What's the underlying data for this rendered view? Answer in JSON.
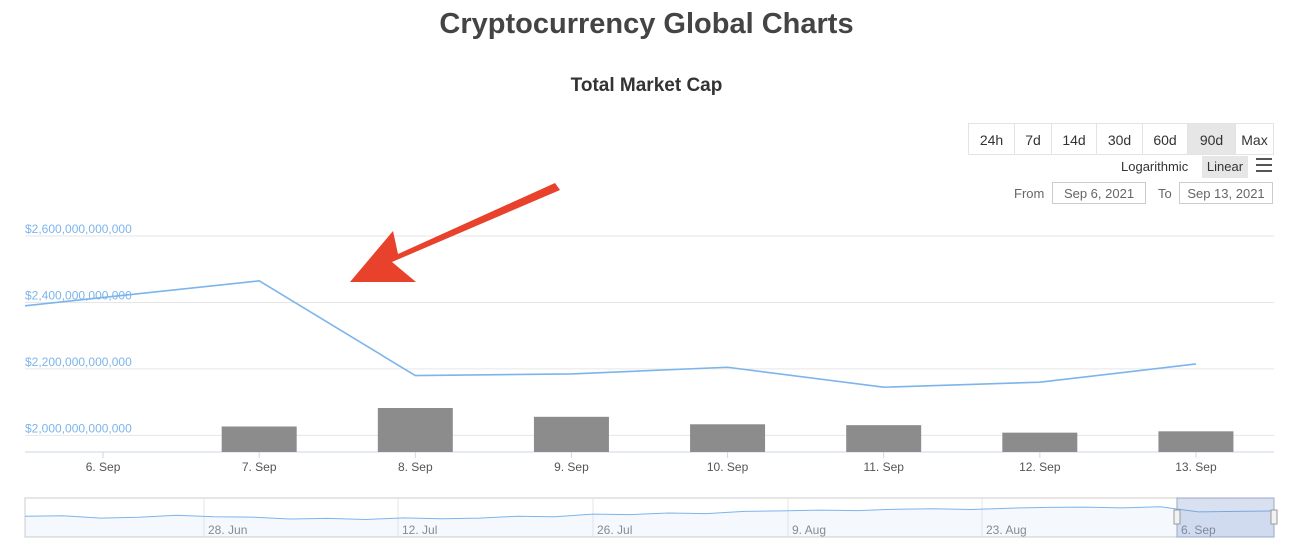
{
  "page": {
    "title": "Cryptocurrency Global Charts"
  },
  "chart_data": {
    "type": "line",
    "title": "Total Market Cap",
    "xlabel": "",
    "ylabel": "",
    "categories": [
      "6. Sep",
      "7. Sep",
      "8. Sep",
      "9. Sep",
      "10. Sep",
      "11. Sep",
      "12. Sep",
      "13. Sep"
    ],
    "series": [
      {
        "values": [
          2390000000000,
          2465000000000,
          2180000000000,
          2185000000000,
          2205000000000,
          2145000000000,
          2160000000000,
          2215000000000
        ]
      },
      {
        "type": "bar",
        "values": [
          null,
          0.58,
          1.0,
          0.8,
          0.63,
          0.61,
          0.44,
          0.47
        ]
      }
    ],
    "y_ticks": [
      "$2,000,000,000,000",
      "$2,200,000,000,000",
      "$2,400,000,000,000",
      "$2,600,000,000,000"
    ],
    "ylim": [
      1950000000000,
      2600000000000
    ],
    "grid": true,
    "legend": "none",
    "navigator": {
      "labels": [
        "28. Jun",
        "12. Jul",
        "26. Jul",
        "9. Aug",
        "23. Aug",
        "6. Sep"
      ],
      "values": [
        0.62,
        0.64,
        0.55,
        0.58,
        0.66,
        0.6,
        0.59,
        0.52,
        0.54,
        0.5,
        0.56,
        0.53,
        0.55,
        0.62,
        0.6,
        0.7,
        0.68,
        0.74,
        0.72,
        0.8,
        0.82,
        0.85,
        0.83,
        0.88,
        0.9,
        0.87,
        0.92,
        0.95,
        0.96,
        0.93,
        0.97,
        0.78,
        0.8,
        0.82
      ]
    }
  },
  "controls": {
    "ranges": [
      "24h",
      "7d",
      "14d",
      "30d",
      "60d",
      "90d",
      "Max"
    ],
    "active_range": "90d",
    "scale_log": "Logarithmic",
    "scale_linear": "Linear",
    "from_label": "From",
    "from_value": "Sep 6, 2021",
    "to_label": "To",
    "to_value": "Sep 13, 2021"
  },
  "colors": {
    "line": "#7cb5ec",
    "bar": "#8c8c8c",
    "annotation_arrow": "#e8412c"
  }
}
